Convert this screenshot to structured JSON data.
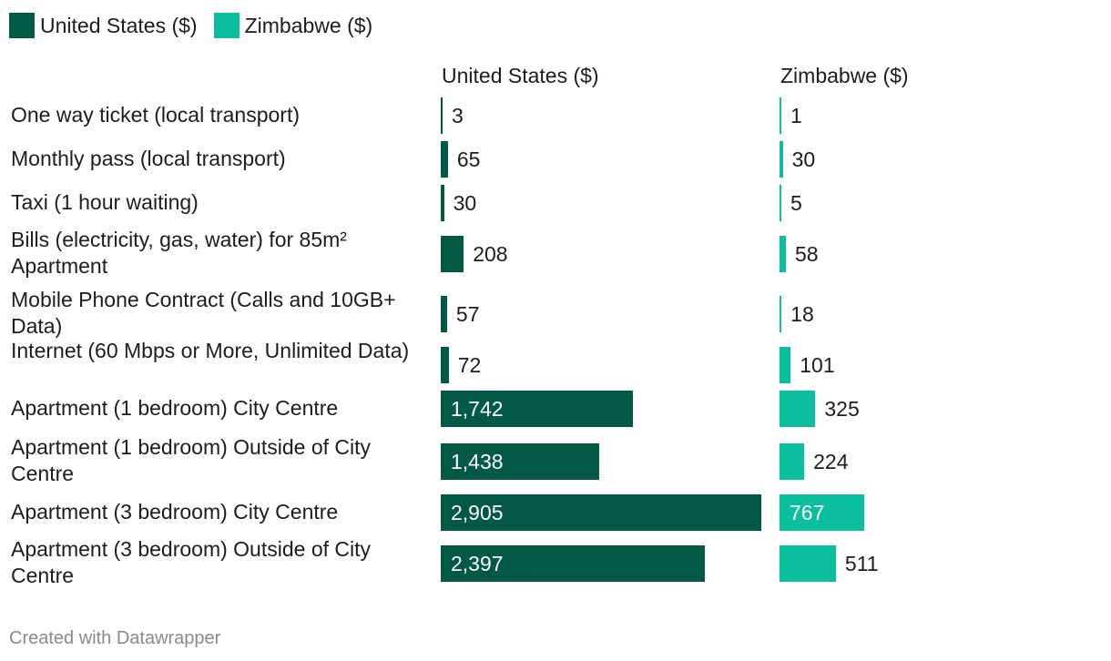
{
  "legend": [
    {
      "label": "United States ($)",
      "color": "#025a45"
    },
    {
      "label": "Zimbabwe ($)",
      "color": "#0abf9e"
    }
  ],
  "footer": "Created with Datawrapper",
  "chart_data": {
    "type": "bar",
    "orientation": "horizontal",
    "layout": "split-bars",
    "categories": [
      "One way ticket (local transport)",
      "Monthly pass (local transport)",
      "Taxi (1 hour waiting)",
      "Bills (electricity, gas, water) for 85m² Apartment",
      "Mobile Phone Contract (Calls and 10GB+ Data)",
      "Internet (60 Mbps or More, Unlimited Data)",
      "Apartment (1 bedroom) City Centre",
      "Apartment (1 bedroom) Outside of City Centre",
      "Apartment (3 bedroom) City Centre",
      "Apartment (3 bedroom) Outside of City Centre"
    ],
    "series": [
      {
        "name": "United States ($)",
        "color": "#025a45",
        "values": [
          3,
          65,
          30,
          208,
          57,
          72,
          1742,
          1438,
          2905,
          2397
        ],
        "labels": [
          "3",
          "65",
          "30",
          "208",
          "57",
          "72",
          "1,742",
          "1,438",
          "2,905",
          "2,397"
        ]
      },
      {
        "name": "Zimbabwe ($)",
        "color": "#0abf9e",
        "values": [
          1,
          30,
          5,
          58,
          18,
          101,
          325,
          224,
          767,
          511
        ],
        "labels": [
          "1",
          "30",
          "5",
          "58",
          "18",
          "101",
          "325",
          "224",
          "767",
          "511"
        ]
      }
    ],
    "legend_position": "top-left",
    "grid": false
  }
}
